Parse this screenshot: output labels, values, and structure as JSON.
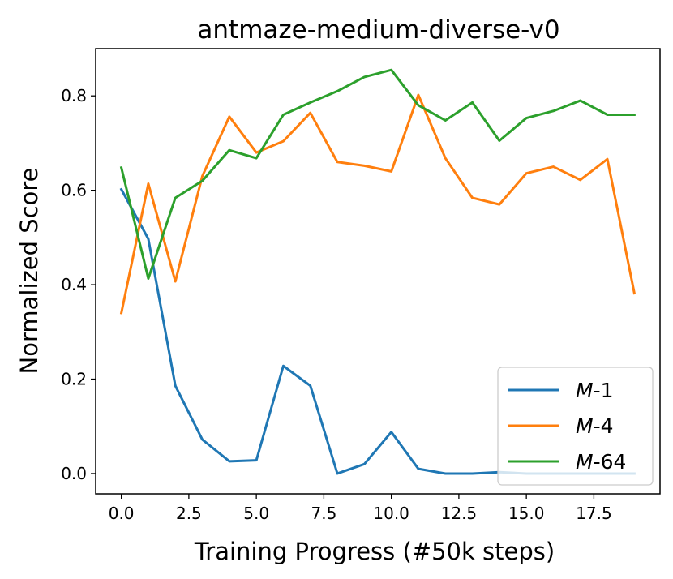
{
  "chart_data": {
    "type": "line",
    "title": "antmaze-medium-diverse-v0",
    "xlabel": "Training Progress (#50k steps)",
    "ylabel": "Normalized Score",
    "xlim": [
      -0.95,
      19.95
    ],
    "ylim": [
      -0.043,
      0.9
    ],
    "xticks": [
      0.0,
      2.5,
      5.0,
      7.5,
      10.0,
      12.5,
      15.0,
      17.5
    ],
    "xtick_labels": [
      "0.0",
      "2.5",
      "5.0",
      "7.5",
      "10.0",
      "12.5",
      "15.0",
      "17.5"
    ],
    "yticks": [
      0.0,
      0.2,
      0.4,
      0.6,
      0.8
    ],
    "ytick_labels": [
      "0.0",
      "0.2",
      "0.4",
      "0.6",
      "0.8"
    ],
    "legend_position": "lower-right",
    "x": [
      0,
      1,
      2,
      3,
      4,
      5,
      6,
      7,
      8,
      9,
      10,
      11,
      12,
      13,
      14,
      15,
      16,
      17,
      18,
      19
    ],
    "series": [
      {
        "name_italic": "M",
        "name_suffix": "-1",
        "color": "#1f77b4",
        "values": [
          0.602,
          0.497,
          0.186,
          0.072,
          0.026,
          0.028,
          0.228,
          0.186,
          0.0,
          0.02,
          0.088,
          0.01,
          0.0,
          0.0,
          0.003,
          0.0,
          0.0,
          0.0,
          0.0,
          0.0
        ]
      },
      {
        "name_italic": "M",
        "name_suffix": "-4",
        "color": "#ff7f0e",
        "values": [
          0.34,
          0.614,
          0.407,
          0.63,
          0.756,
          0.68,
          0.704,
          0.764,
          0.66,
          0.652,
          0.64,
          0.802,
          0.668,
          0.584,
          0.57,
          0.636,
          0.65,
          0.622,
          0.666,
          0.382
        ]
      },
      {
        "name_italic": "M",
        "name_suffix": "-64",
        "color": "#2ca02c",
        "values": [
          0.648,
          0.413,
          0.584,
          0.62,
          0.685,
          0.668,
          0.76,
          0.786,
          0.81,
          0.84,
          0.855,
          0.78,
          0.748,
          0.786,
          0.705,
          0.753,
          0.768,
          0.79,
          0.76,
          0.76
        ]
      }
    ]
  }
}
